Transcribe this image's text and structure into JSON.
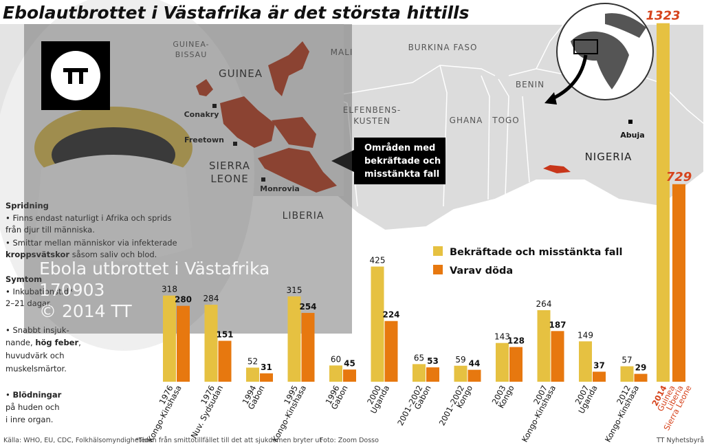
{
  "title": "Ebolautbrottet i Västafrika är det största hittills",
  "chart_data": {
    "type": "bar",
    "categories": [
      {
        "year": "1976",
        "place": [
          "Kongo-Kinshasa"
        ]
      },
      {
        "year": "1976",
        "place": [
          "Nuv. Sydsudan"
        ]
      },
      {
        "year": "1994",
        "place": [
          "Gabon"
        ]
      },
      {
        "year": "1995",
        "place": [
          "Kongo-Kinshasa"
        ]
      },
      {
        "year": "1996",
        "place": [
          "Gabon"
        ]
      },
      {
        "year": "2000",
        "place": [
          "Uganda"
        ]
      },
      {
        "year": "2001–2002",
        "place": [
          "Gabon"
        ]
      },
      {
        "year": "2001–2002",
        "place": [
          "Kongo"
        ]
      },
      {
        "year": "2003",
        "place": [
          "Kongo"
        ]
      },
      {
        "year": "2007",
        "place": [
          "Kongo-Kinshasa"
        ]
      },
      {
        "year": "2007",
        "place": [
          "Uganda"
        ]
      },
      {
        "year": "2012",
        "place": [
          "Kongo-Kinshasa"
        ]
      },
      {
        "year": "2014",
        "place": [
          "Guinea",
          "Liberia",
          "Sierra Leone"
        ]
      }
    ],
    "series": [
      {
        "name": "Bekräftade och misstänkta fall",
        "color": "#e6c141",
        "values": [
          318,
          284,
          52,
          315,
          60,
          425,
          65,
          59,
          143,
          264,
          149,
          57,
          1323
        ]
      },
      {
        "name": "Varav döda",
        "color": "#e7780f",
        "values": [
          280,
          151,
          31,
          254,
          45,
          224,
          53,
          44,
          128,
          187,
          37,
          29,
          729
        ]
      }
    ],
    "highlight_color": "#d6431c"
  },
  "map": {
    "labels": [
      [
        "GUINEA-",
        "BISSAU"
      ],
      [
        "GUINEA"
      ],
      [
        "MALI"
      ],
      [
        "BURKINA FASO"
      ],
      [
        "BENIN"
      ],
      [
        "Conakry"
      ],
      [
        "Freetown"
      ],
      [
        "SIERRA",
        "LEONE"
      ],
      [
        "Monrovia"
      ],
      [
        "LIBERIA"
      ],
      [
        "ELFENBENS-",
        "KUSTEN"
      ],
      [
        "GHANA"
      ],
      [
        "TOGO"
      ],
      [
        "Abuja"
      ],
      [
        "NIGERIA"
      ]
    ],
    "callout": [
      "Områden med",
      "bekräftade och",
      "misstänkta fall"
    ]
  },
  "sidebar": {
    "lines": [
      [
        {
          "b": "Spridning"
        }
      ],
      [
        {
          "t": "• Finns endast naturligt i Afrika och sprids"
        }
      ],
      [
        {
          "t": "från djur till människa."
        }
      ],
      [
        {
          "t": "• Smittar mellan människor via infekterade"
        }
      ],
      [
        {
          "b": "kroppsvätskor"
        },
        {
          "t": " såsom saliv och blod."
        }
      ],
      [
        {
          "b": "Symtom"
        }
      ],
      [
        {
          "t": "• Inkubationstid*"
        }
      ],
      [
        {
          "t": "2–21 dagar."
        }
      ],
      [
        {
          "t": "• Snabbt insjuk-"
        }
      ],
      [
        {
          "t": "nande, "
        },
        {
          "b": "hög feber"
        },
        {
          "t": ","
        }
      ],
      [
        {
          "t": "huvudvärk och"
        }
      ],
      [
        {
          "t": "muskelsmärtor."
        }
      ],
      [
        {
          "t": "• "
        },
        {
          "b": "Blödningar"
        }
      ],
      [
        {
          "t": "på huden och"
        }
      ],
      [
        {
          "t": "i inre organ."
        }
      ]
    ]
  },
  "watermark": [
    "Ebola utbrottet i Västafrika",
    "170903",
    "© 2014 TT"
  ],
  "footer": [
    "Källa: WHO, EU, CDC, Folkhälsomyndigheten",
    "*Tiden från smittotillfället till det att sjukdomen bryter ut",
    "Foto: Zoom Dosso",
    "TT Nyhetsbyrån"
  ]
}
